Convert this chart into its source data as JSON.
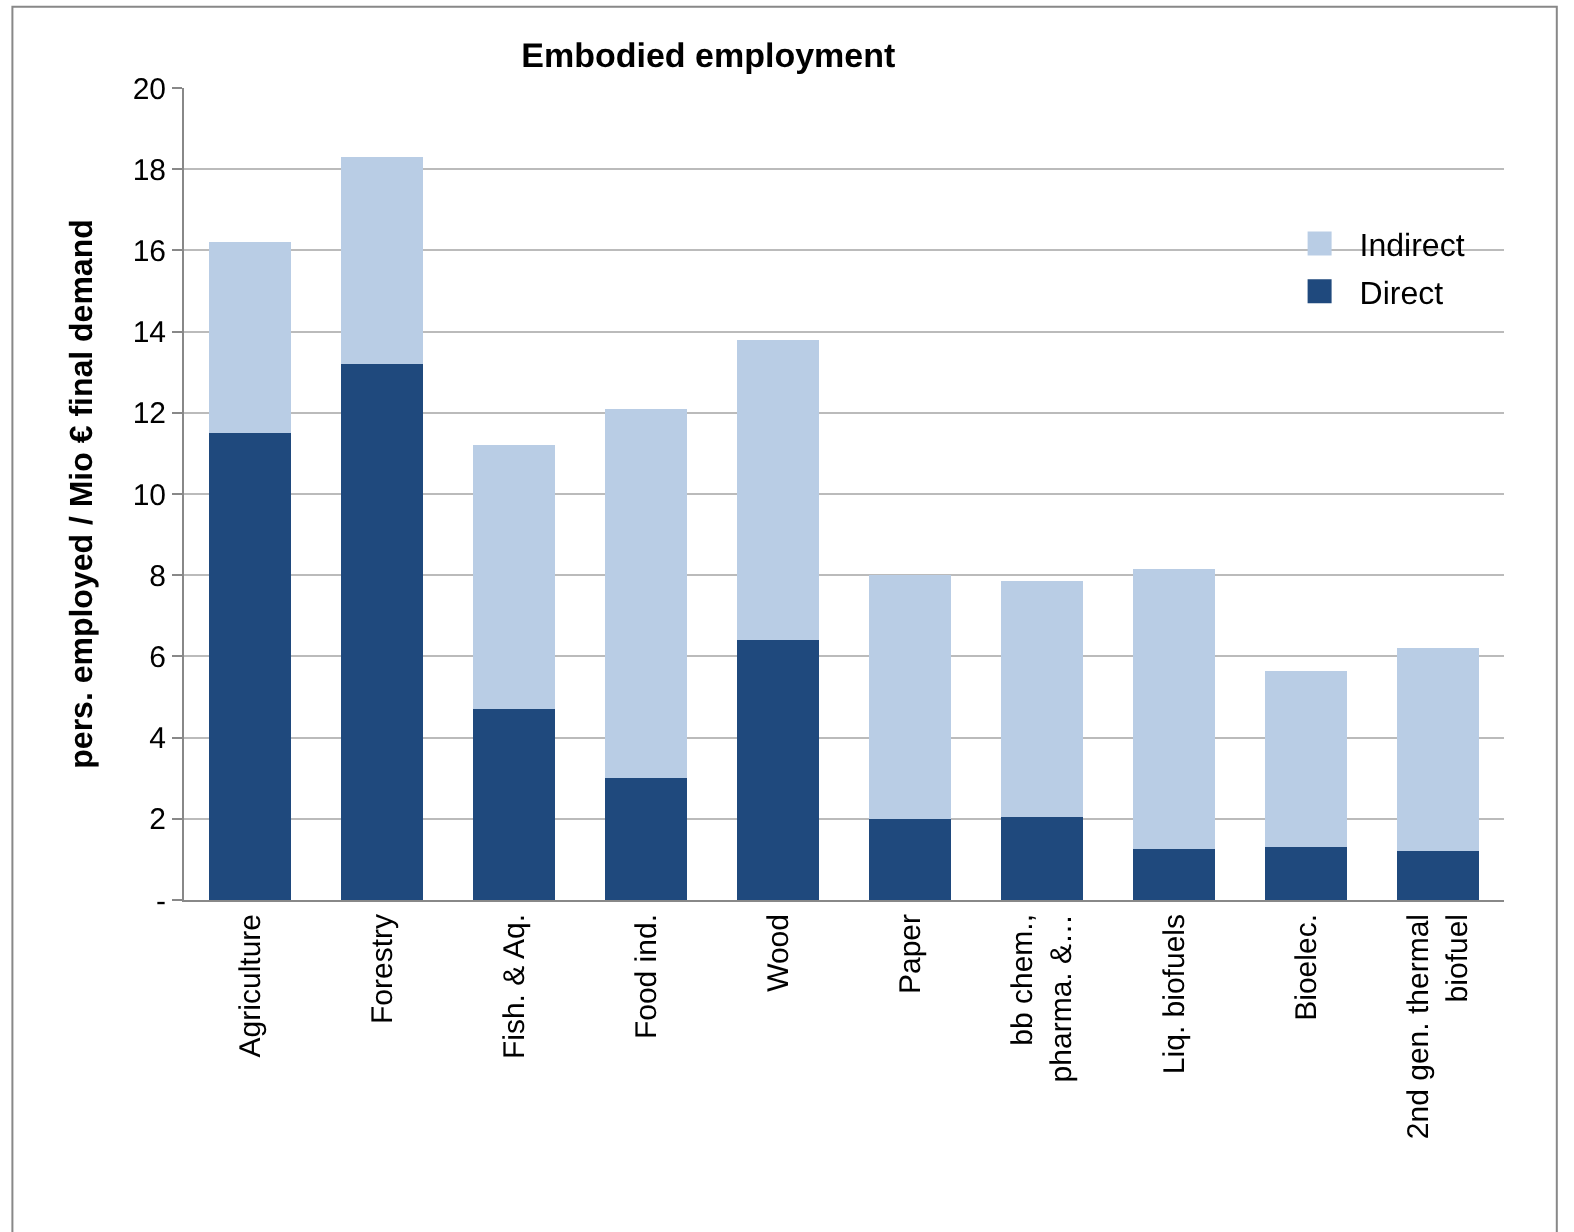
{
  "chart_data": {
    "type": "bar",
    "title": "Embodied employment",
    "ylabel": "pers. employed / Mio € final demand",
    "categories": [
      "Agriculture",
      "Forestry",
      "Fish. & Aq.",
      "Food ind.",
      "Wood",
      "Paper",
      "bb chem.,\npharma. &…",
      "Liq. biofuels",
      "Bioelec.",
      "2nd gen. thermal\nbiofuel"
    ],
    "series": [
      {
        "name": "Direct",
        "color": "#1f497d",
        "values": [
          11.5,
          13.2,
          4.7,
          3.0,
          6.4,
          2.0,
          2.05,
          1.25,
          1.3,
          1.2
        ]
      },
      {
        "name": "Indirect",
        "color": "#b9cde5",
        "values": [
          4.7,
          5.1,
          6.5,
          9.1,
          7.4,
          6.0,
          5.8,
          6.9,
          4.35,
          5.0
        ]
      }
    ],
    "stacked": true,
    "ylim": [
      0,
      20
    ],
    "yticks": [
      {
        "value": 0,
        "label": "-"
      },
      2,
      4,
      6,
      8,
      10,
      12,
      14,
      16,
      18,
      20
    ],
    "grid": "y",
    "legend": "top right"
  }
}
